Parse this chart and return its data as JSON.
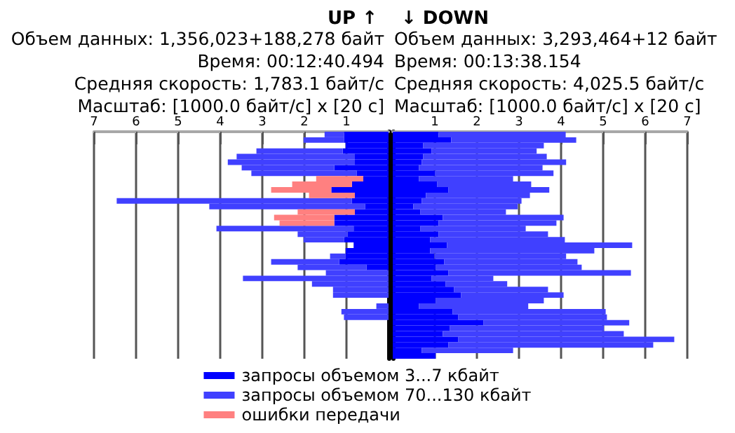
{
  "chart_data": [
    {
      "type": "bar",
      "orientation": "horizontal",
      "stacked": true,
      "title": "UP ↑",
      "annotations": [
        "Объем данных: 1,356,023+188,278 байт",
        "Время: 00:12:40.494",
        "Средняя скорость: 1,783.1 байт/с",
        "Масштаб: [1000.0 байт/с] x [20 с]"
      ],
      "categories": [
        null,
        null,
        null,
        null,
        null,
        null,
        null,
        null,
        null,
        null,
        null,
        null,
        null,
        null,
        null,
        null,
        null,
        null,
        null,
        null,
        null,
        null,
        null,
        null,
        null,
        null,
        null,
        null,
        null,
        null,
        null,
        null,
        null,
        null,
        null,
        null,
        null,
        null,
        null,
        null,
        null
      ],
      "series": [
        {
          "name": "запросы объемом 3...7 кбайт",
          "color": "#0000ff",
          "values": [
            1.06,
            1.06,
            1.02,
            1.09,
            0.8,
            0.8,
            1.29,
            0.76,
            0.6,
            0.87,
            1.36,
            0.8,
            0.87,
            0.56,
            0.8,
            1.29,
            1.29,
            0.83,
            0.97,
            1.06,
            0.83,
            1.02,
            1.02,
            1.17,
            0.52,
            null,
            null,
            null,
            null,
            null,
            null,
            null,
            null,
            null,
            null,
            null,
            null,
            null,
            null,
            null,
            null
          ]
        },
        {
          "name": "запросы объемом 70...130 кбайт",
          "color": "#4040ff",
          "values": [
            0.46,
            0.96,
            null,
            2.05,
            2.81,
            3.02,
            2.2,
            2.5,
            null,
            null,
            null,
            null,
            5.59,
            3.7,
            null,
            null,
            null,
            3.26,
            1.19,
            0.96,
            null,
            null,
            0.37,
            1.62,
            1.64,
            1.49,
            3.46,
            1.82,
            1.32,
            1.32,
            null,
            0.29,
            1.12,
            1.06,
            null,
            null,
            null,
            null,
            null,
            null,
            null
          ]
        },
        {
          "name": "ошибки передачи",
          "color": "#ff8080",
          "values": [
            null,
            null,
            null,
            null,
            null,
            null,
            null,
            null,
            1.12,
            1.42,
            1.43,
            1.09,
            null,
            null,
            1.36,
            1.43,
            1.3,
            null,
            null,
            null,
            null,
            null,
            null,
            null,
            null,
            null,
            null,
            null,
            null,
            null,
            null,
            null,
            null,
            null,
            null,
            null,
            null,
            null,
            null,
            null,
            null
          ]
        }
      ],
      "xlim": [
        7,
        0
      ],
      "xticks": [
        1,
        2,
        3,
        4,
        5,
        6,
        7
      ],
      "grid": "x",
      "legend": "bottom"
    },
    {
      "type": "bar",
      "orientation": "horizontal",
      "stacked": true,
      "title": "↓ DOWN",
      "annotations": [
        "Объем данных: 3,293,464+12 байт",
        "Время: 00:13:38.154",
        "Средняя скорость: 4,025.5 байт/с",
        "Масштаб: [1000.0 байт/с] x [20 с]"
      ],
      "categories": [
        null,
        null,
        null,
        null,
        null,
        null,
        null,
        null,
        null,
        null,
        null,
        null,
        null,
        null,
        null,
        null,
        null,
        null,
        null,
        null,
        null,
        null,
        null,
        null,
        null,
        null,
        null,
        null,
        null,
        null,
        null,
        null,
        null,
        null,
        null,
        null,
        null,
        null,
        null,
        null,
        null
      ],
      "series": [
        {
          "color": "#0000ff",
          "values": [
            1.09,
            1.39,
            0.72,
            0.92,
            0.72,
            0.69,
            0.62,
            1.0,
            0.62,
            1.06,
            1.32,
            0.79,
            0.69,
            0.49,
            0.66,
            1.19,
            1.09,
            0.66,
            1.09,
            0.89,
            1.29,
            0.89,
            0.99,
            1.22,
            1.02,
            1.32,
            0.92,
            1.26,
            1.46,
            1.62,
            1.02,
            0.62,
            1.42,
            1.56,
            2.16,
            1.36,
            1.19,
            1.56,
            1.32,
            0.69,
            1.02
          ]
        },
        {
          "color": "#4040ff",
          "values": [
            3.02,
            2.97,
            2.87,
            2.5,
            2.94,
            3.43,
            2.94,
            2.82,
            2.24,
            2.23,
            2.4,
            2.47,
            2.37,
            2.48,
            2.03,
            2.87,
            2.8,
            2.5,
            2.6,
            3.2,
            4.4,
            3.9,
            3.13,
            3.17,
            3.47,
            4.34,
            1.47,
            1.46,
            2.23,
            2.44,
            2.57,
            2.6,
            3.64,
            3.53,
            3.46,
            3.66,
            4.3,
            5.13,
            4.87,
            2.17,
            null
          ]
        }
      ],
      "xlim": [
        0,
        7
      ],
      "xticks": [
        1,
        2,
        3,
        4,
        5,
        6,
        7
      ],
      "grid": "x"
    }
  ]
}
